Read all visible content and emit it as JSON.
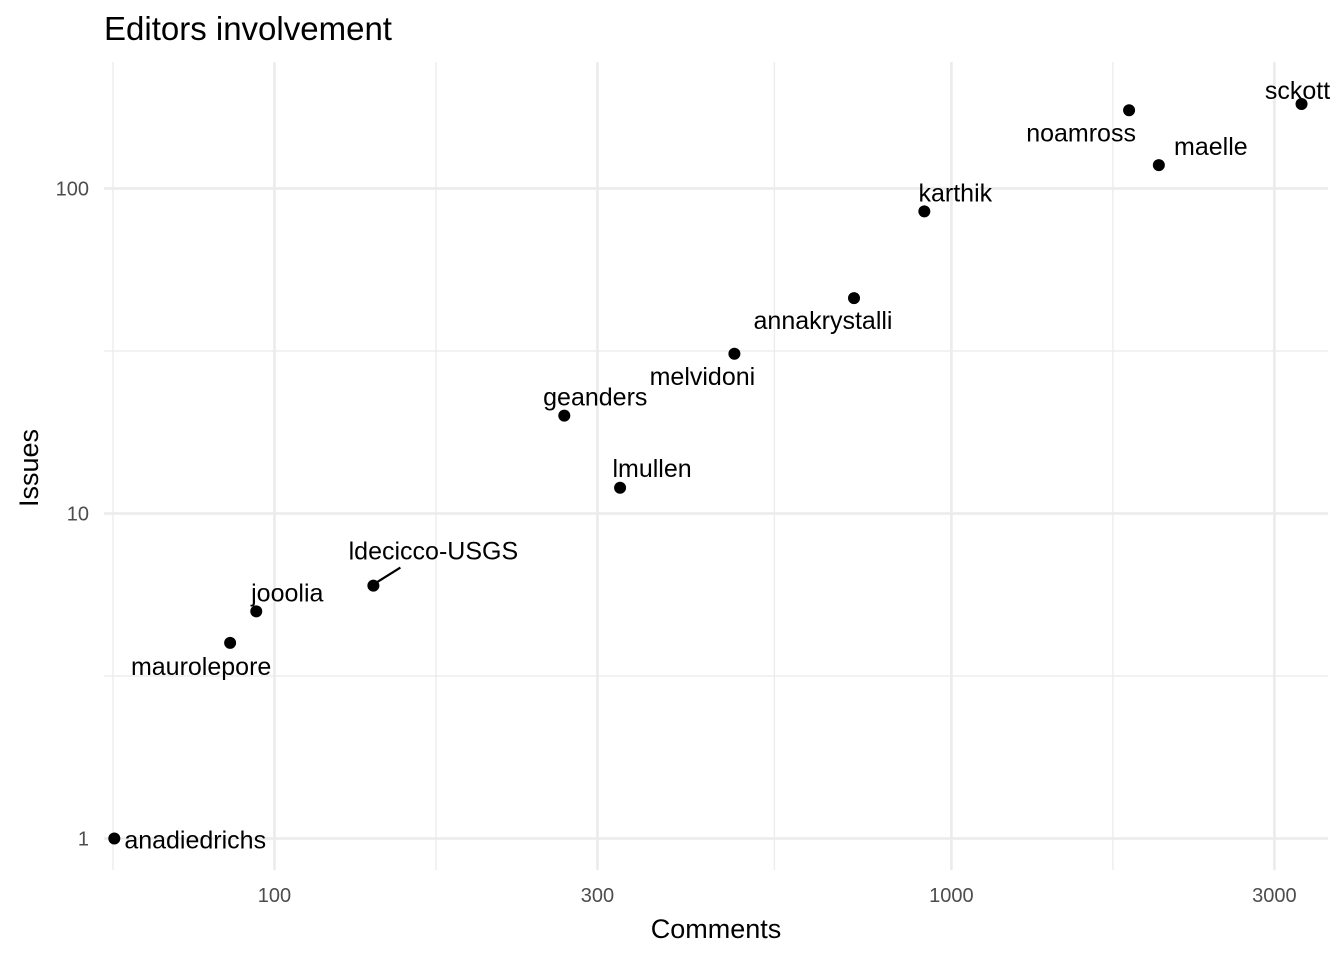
{
  "chart_data": {
    "type": "scatter",
    "title": "Editors involvement",
    "xlabel": "Comments",
    "ylabel": "Issues",
    "x_scale": "log10",
    "y_scale": "log10",
    "xlim": [
      56,
      3600
    ],
    "ylim": [
      0.8,
      245
    ],
    "x_ticks": [
      {
        "value": 100,
        "label": "100"
      },
      {
        "value": 300,
        "label": "300"
      },
      {
        "value": 1000,
        "label": "1000"
      },
      {
        "value": 3000,
        "label": "3000"
      }
    ],
    "y_ticks": [
      {
        "value": 1,
        "label": "1"
      },
      {
        "value": 10,
        "label": "10"
      },
      {
        "value": 100,
        "label": "100"
      }
    ],
    "grid": true,
    "legend": "none",
    "point_color": "#000000",
    "points": [
      {
        "name": "anadiedrichs",
        "x": 58,
        "y": 1
      },
      {
        "name": "maurolepore",
        "x": 86,
        "y": 4
      },
      {
        "name": "jooolia",
        "x": 94,
        "y": 5
      },
      {
        "name": "ldecicco-USGS",
        "x": 140,
        "y": 6
      },
      {
        "name": "geanders",
        "x": 268,
        "y": 20
      },
      {
        "name": "lmullen",
        "x": 324,
        "y": 12
      },
      {
        "name": "melvidoni",
        "x": 478,
        "y": 31
      },
      {
        "name": "annakrystalli",
        "x": 718,
        "y": 46
      },
      {
        "name": "karthik",
        "x": 912,
        "y": 85
      },
      {
        "name": "noamross",
        "x": 1830,
        "y": 174
      },
      {
        "name": "maelle",
        "x": 2025,
        "y": 118
      },
      {
        "name": "sckott",
        "x": 3290,
        "y": 182
      }
    ]
  }
}
